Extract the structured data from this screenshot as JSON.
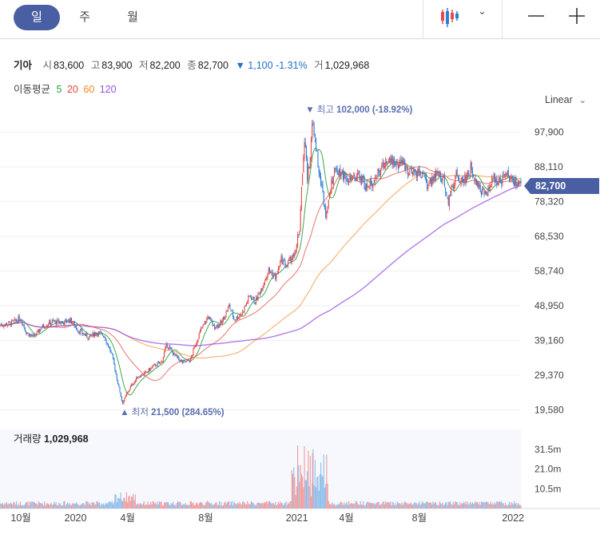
{
  "tabs": [
    "일",
    "주",
    "월"
  ],
  "active_tab": 0,
  "toolbar": {
    "candle_icon": "candlestick-icon",
    "chevron_icon": "chevron-down-icon",
    "zoom_out_icon": "minus-icon",
    "zoom_in_icon": "plus-icon"
  },
  "quote": {
    "name": "기아",
    "open_label": "시",
    "open": "83,600",
    "high_label": "고",
    "high": "83,900",
    "low_label": "저",
    "low": "82,200",
    "close_label": "종",
    "close": "82,700",
    "change_arrow": "▼",
    "change": "1,100",
    "change_pct": "-1.31%",
    "volume_label": "거",
    "volume": "1,029,968"
  },
  "moving_average": {
    "label": "이동평균",
    "periods": [
      {
        "value": "5",
        "color": "#2a9d3a"
      },
      {
        "value": "20",
        "color": "#e0463a"
      },
      {
        "value": "60",
        "color": "#f08a24"
      },
      {
        "value": "120",
        "color": "#9b4fe0"
      }
    ]
  },
  "scale_type": "Linear",
  "colors": {
    "up": "#e84a4a",
    "down": "#2c7fd6",
    "accent": "#4a5fa3"
  },
  "chart_data": {
    "type": "candlestick",
    "price_axis": {
      "ticks": [
        97900,
        88110,
        78320,
        68530,
        58740,
        48950,
        39160,
        29370,
        19580
      ],
      "tick_labels": [
        "97,900",
        "88,110",
        "78,320",
        "68,530",
        "58,740",
        "48,950",
        "39,160",
        "29,370",
        "19,580"
      ],
      "range": [
        17000,
        102500
      ]
    },
    "current_price": {
      "value": 82700,
      "label": "82,700"
    },
    "high_marker": {
      "value": 102000,
      "label": "최고",
      "text": "102,000 (-18.92%)"
    },
    "low_marker": {
      "value": 21500,
      "label": "최저",
      "text": "21,500 (284.65%)"
    },
    "x_axis_labels": [
      "10월",
      "2020",
      "4월",
      "8월",
      "2021",
      "4월",
      "8월",
      "2022"
    ],
    "x_axis_positions": [
      0.04,
      0.145,
      0.245,
      0.395,
      0.57,
      0.665,
      0.805,
      0.985
    ],
    "price_path": [
      [
        0.0,
        43500
      ],
      [
        0.02,
        44000
      ],
      [
        0.04,
        45500
      ],
      [
        0.05,
        41500
      ],
      [
        0.065,
        40000
      ],
      [
        0.08,
        43000
      ],
      [
        0.1,
        44500
      ],
      [
        0.12,
        44200
      ],
      [
        0.135,
        45000
      ],
      [
        0.15,
        42000
      ],
      [
        0.17,
        40000
      ],
      [
        0.185,
        41500
      ],
      [
        0.2,
        40500
      ],
      [
        0.215,
        35000
      ],
      [
        0.225,
        28000
      ],
      [
        0.235,
        21500
      ],
      [
        0.25,
        26000
      ],
      [
        0.265,
        29000
      ],
      [
        0.28,
        30000
      ],
      [
        0.295,
        32000
      ],
      [
        0.31,
        33000
      ],
      [
        0.32,
        38000
      ],
      [
        0.335,
        35000
      ],
      [
        0.35,
        33000
      ],
      [
        0.365,
        33500
      ],
      [
        0.375,
        38000
      ],
      [
        0.385,
        42000
      ],
      [
        0.4,
        46000
      ],
      [
        0.41,
        43000
      ],
      [
        0.425,
        44000
      ],
      [
        0.44,
        49000
      ],
      [
        0.45,
        45000
      ],
      [
        0.465,
        47000
      ],
      [
        0.48,
        52000
      ],
      [
        0.49,
        50000
      ],
      [
        0.505,
        55000
      ],
      [
        0.515,
        59000
      ],
      [
        0.53,
        57000
      ],
      [
        0.54,
        62000
      ],
      [
        0.55,
        60000
      ],
      [
        0.565,
        64000
      ],
      [
        0.575,
        70000
      ],
      [
        0.58,
        85000
      ],
      [
        0.585,
        98000
      ],
      [
        0.59,
        85000
      ],
      [
        0.595,
        90000
      ],
      [
        0.6,
        102000
      ],
      [
        0.605,
        95000
      ],
      [
        0.615,
        85000
      ],
      [
        0.625,
        75000
      ],
      [
        0.635,
        83000
      ],
      [
        0.645,
        88000
      ],
      [
        0.66,
        86000
      ],
      [
        0.675,
        84000
      ],
      [
        0.69,
        86000
      ],
      [
        0.705,
        82000
      ],
      [
        0.72,
        85000
      ],
      [
        0.735,
        88000
      ],
      [
        0.745,
        91000
      ],
      [
        0.76,
        89000
      ],
      [
        0.775,
        89000
      ],
      [
        0.79,
        86000
      ],
      [
        0.805,
        87000
      ],
      [
        0.82,
        83000
      ],
      [
        0.835,
        86000
      ],
      [
        0.85,
        85000
      ],
      [
        0.86,
        78000
      ],
      [
        0.875,
        86000
      ],
      [
        0.89,
        84000
      ],
      [
        0.905,
        88000
      ],
      [
        0.92,
        82000
      ],
      [
        0.935,
        80000
      ],
      [
        0.945,
        85000
      ],
      [
        0.96,
        84000
      ],
      [
        0.975,
        86000
      ],
      [
        0.985,
        84000
      ],
      [
        1.0,
        82700
      ]
    ],
    "volume_panel": {
      "label": "거래량",
      "value": "1,029,968",
      "axis_ticks": [
        31500000,
        21000000,
        10500000
      ],
      "axis_labels": [
        "31.5m",
        "21.0m",
        "10.5m"
      ]
    }
  }
}
